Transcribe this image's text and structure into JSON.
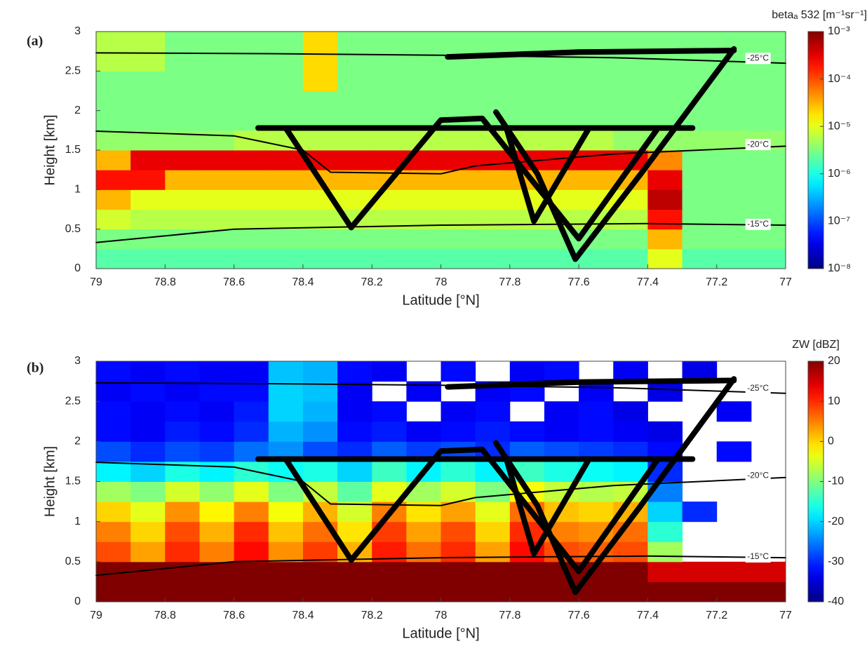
{
  "chart_data": [
    {
      "type": "heatmap",
      "panel_label": "(a)",
      "xlabel": "Latitude [°N]",
      "ylabel": "Height [km]",
      "colorbar_label": "betaₐ 532 [m⁻¹sr⁻¹]",
      "color_scale": "log",
      "colormap": "jet",
      "xlim": [
        79,
        77
      ],
      "ylim": [
        0,
        3
      ],
      "xticks": [
        79,
        78.8,
        78.6,
        78.4,
        78.2,
        78,
        77.8,
        77.6,
        77.4,
        77.2,
        77
      ],
      "yticks": [
        0,
        0.5,
        1,
        1.5,
        2,
        2.5,
        3
      ],
      "clim": [
        1e-08,
        0.001
      ],
      "cticks": [
        {
          "value": 0.001,
          "label": "10⁻³"
        },
        {
          "value": 0.0001,
          "label": "10⁻⁴"
        },
        {
          "value": 1e-05,
          "label": "10⁻⁵"
        },
        {
          "value": 1e-06,
          "label": "10⁻⁶"
        },
        {
          "value": 1e-07,
          "label": "10⁻⁷"
        },
        {
          "value": 1e-08,
          "label": "10⁻⁸"
        }
      ],
      "x_edges": [
        79,
        78.9,
        78.8,
        78.7,
        78.6,
        78.5,
        78.4,
        78.3,
        78.2,
        78.1,
        78,
        77.9,
        77.8,
        77.7,
        77.6,
        77.5,
        77.4,
        77.3,
        77.2,
        77.1,
        77
      ],
      "y_edges": [
        0,
        0.25,
        0.5,
        0.75,
        1,
        1.25,
        1.5,
        1.75,
        2,
        2.25,
        2.5,
        2.75,
        3
      ],
      "z": [
        [
          2e-06,
          2e-06,
          2e-06,
          2e-06,
          2e-06,
          2e-06,
          2e-06,
          2e-06,
          2e-06,
          2e-06,
          2e-06,
          2e-06,
          2e-06,
          2e-06,
          2e-06,
          2e-06,
          1e-05,
          2e-06,
          2e-06,
          2e-06
        ],
        [
          3e-06,
          3e-06,
          3e-06,
          3e-06,
          3e-06,
          3e-06,
          3e-06,
          3e-06,
          3e-06,
          3e-06,
          3e-06,
          3e-06,
          3e-06,
          3e-06,
          3e-06,
          3e-06,
          3e-05,
          3e-06,
          3e-06,
          3e-06
        ],
        [
          8e-06,
          6e-06,
          6e-06,
          6e-06,
          6e-06,
          6e-06,
          6e-06,
          6e-06,
          6e-06,
          6e-06,
          6e-06,
          6e-06,
          6e-06,
          6e-06,
          6e-06,
          6e-06,
          0.0002,
          3e-06,
          3e-06,
          3e-06
        ],
        [
          3e-05,
          1e-05,
          1e-05,
          1e-05,
          1e-05,
          1e-05,
          1e-05,
          1e-05,
          1e-05,
          1e-05,
          1e-05,
          1e-05,
          1e-05,
          1e-05,
          1e-05,
          1e-05,
          0.0005,
          3e-06,
          3e-06,
          3e-06
        ],
        [
          0.0002,
          0.0002,
          3e-05,
          3e-05,
          3e-05,
          3e-05,
          3e-05,
          3e-05,
          3e-05,
          3e-05,
          3e-05,
          3e-05,
          3e-05,
          3e-05,
          3e-05,
          3e-05,
          0.0003,
          3e-06,
          3e-06,
          3e-06
        ],
        [
          3e-05,
          0.0003,
          0.0003,
          0.0003,
          0.0003,
          0.0003,
          0.0003,
          0.0003,
          0.0003,
          0.0003,
          0.0003,
          0.0003,
          0.0003,
          0.0003,
          0.0003,
          0.0003,
          5e-05,
          3e-06,
          3e-06,
          3e-06
        ],
        [
          4e-06,
          4e-06,
          4e-06,
          4e-06,
          6e-06,
          6e-06,
          6e-06,
          6e-06,
          6e-06,
          6e-06,
          6e-06,
          6e-06,
          6e-06,
          6e-06,
          6e-06,
          4e-06,
          4e-06,
          4e-06,
          4e-06,
          4e-06
        ],
        [
          3e-06,
          3e-06,
          3e-06,
          3e-06,
          3e-06,
          3e-06,
          3e-06,
          3e-06,
          3e-06,
          3e-06,
          3e-06,
          3e-06,
          3e-06,
          3e-06,
          3e-06,
          3e-06,
          3e-06,
          3e-06,
          3e-06,
          3e-06
        ],
        [
          3e-06,
          3e-06,
          3e-06,
          3e-06,
          3e-06,
          3e-06,
          3e-06,
          3e-06,
          3e-06,
          3e-06,
          3e-06,
          3e-06,
          3e-06,
          3e-06,
          3e-06,
          3e-06,
          3e-06,
          3e-06,
          3e-06,
          3e-06
        ],
        [
          3e-06,
          3e-06,
          3e-06,
          3e-06,
          3e-06,
          3e-06,
          2e-05,
          3e-06,
          3e-06,
          3e-06,
          3e-06,
          3e-06,
          3e-06,
          3e-06,
          3e-06,
          3e-06,
          3e-06,
          3e-06,
          3e-06,
          3e-06
        ],
        [
          6e-06,
          6e-06,
          3e-06,
          3e-06,
          3e-06,
          3e-06,
          2e-05,
          3e-06,
          3e-06,
          3e-06,
          3e-06,
          3e-06,
          3e-06,
          3e-06,
          3e-06,
          3e-06,
          3e-06,
          3e-06,
          3e-06,
          3e-06
        ],
        [
          6e-06,
          6e-06,
          3e-06,
          3e-06,
          3e-06,
          3e-06,
          2e-05,
          3e-06,
          3e-06,
          3e-06,
          3e-06,
          3e-06,
          3e-06,
          3e-06,
          3e-06,
          3e-06,
          3e-06,
          3e-06,
          3e-06,
          3e-06
        ]
      ],
      "series": [
        {
          "color": "#000000",
          "width": 2,
          "x": [
            79,
            78.5,
            78,
            77.5,
            77
          ],
          "y": [
            2.73,
            2.72,
            2.7,
            2.67,
            2.6
          ]
        },
        {
          "color": "#000000",
          "width": 2,
          "x": [
            79,
            78.6,
            78.4,
            78.32,
            78,
            77.9,
            77.5,
            77
          ],
          "y": [
            1.74,
            1.68,
            1.5,
            1.22,
            1.2,
            1.3,
            1.45,
            1.55
          ]
        },
        {
          "color": "#000000",
          "width": 2,
          "x": [
            79,
            78.6,
            78,
            77.4,
            77
          ],
          "y": [
            0.33,
            0.5,
            0.55,
            0.57,
            0.55
          ]
        },
        {
          "color": "#000000",
          "width": 8,
          "x": [
            78.53,
            77.27,
            null,
            78.45,
            78.26,
            78,
            77.88,
            77.6,
            77.37,
            null,
            77.84,
            77.72,
            77.61,
            77.42,
            77.15,
            null,
            77.81,
            77.73,
            77.57,
            null,
            77.98,
            77.6,
            77.15
          ],
          "y": [
            1.78,
            1.78,
            null,
            1.78,
            0.52,
            1.88,
            1.9,
            0.38,
            1.78,
            null,
            1.98,
            1.2,
            0.12,
            1.2,
            2.78,
            null,
            1.78,
            0.6,
            1.78,
            null,
            2.68,
            2.74,
            2.76
          ]
        }
      ],
      "annotations": [
        {
          "text": "-25°C",
          "x": 77.08,
          "y": 2.66
        },
        {
          "text": "-20°C",
          "x": 77.08,
          "y": 1.57
        },
        {
          "text": "-15°C",
          "x": 77.08,
          "y": 0.56
        }
      ]
    },
    {
      "type": "heatmap",
      "panel_label": "(b)",
      "xlabel": "Latitude [°N]",
      "ylabel": "Height [km]",
      "colorbar_label": "ZW [dBZ]",
      "color_scale": "linear",
      "colormap": "jet",
      "xlim": [
        79,
        77
      ],
      "ylim": [
        0,
        3
      ],
      "xticks": [
        79,
        78.8,
        78.6,
        78.4,
        78.2,
        78,
        77.8,
        77.6,
        77.4,
        77.2,
        77
      ],
      "yticks": [
        0,
        0.5,
        1,
        1.5,
        2,
        2.5,
        3
      ],
      "clim": [
        -40,
        20
      ],
      "cticks": [
        20,
        10,
        0,
        -10,
        -20,
        -30,
        -40
      ],
      "x_edges": [
        79,
        78.9,
        78.8,
        78.7,
        78.6,
        78.5,
        78.4,
        78.3,
        78.2,
        78.1,
        78,
        77.9,
        77.8,
        77.7,
        77.6,
        77.5,
        77.4,
        77.3,
        77.2,
        77.1,
        77
      ],
      "y_edges": [
        0,
        0.25,
        0.5,
        0.75,
        1,
        1.25,
        1.5,
        1.75,
        2,
        2.25,
        2.5,
        2.75,
        3
      ],
      "z": [
        [
          25,
          25,
          25,
          25,
          25,
          25,
          25,
          25,
          25,
          25,
          25,
          25,
          25,
          25,
          25,
          25,
          25,
          25,
          25,
          25
        ],
        [
          22,
          22,
          22,
          22,
          22,
          22,
          22,
          22,
          22,
          22,
          22,
          22,
          22,
          22,
          22,
          22,
          15,
          15,
          15,
          15
        ],
        [
          8,
          3,
          10,
          5,
          12,
          4,
          9,
          2,
          11,
          6,
          10,
          3,
          12,
          8,
          7,
          8,
          -8,
          null,
          null,
          null
        ],
        [
          5,
          0,
          8,
          2,
          10,
          1,
          6,
          -1,
          9,
          3,
          8,
          0,
          10,
          5,
          4,
          6,
          -15,
          null,
          null,
          null
        ],
        [
          0,
          -4,
          4,
          -2,
          5,
          -3,
          2,
          -5,
          5,
          -1,
          3,
          -4,
          6,
          1,
          0,
          2,
          -20,
          -30,
          null,
          null
        ],
        [
          -8,
          -10,
          -5,
          -9,
          -4,
          -10,
          -6,
          -12,
          -4,
          -8,
          -5,
          -10,
          -3,
          -6,
          -7,
          -6,
          -25,
          null,
          null,
          null
        ],
        [
          -18,
          -20,
          -16,
          -18,
          -15,
          -17,
          -16,
          -20,
          -14,
          -18,
          -15,
          -18,
          -14,
          -16,
          -17,
          -18,
          -30,
          null,
          null,
          null
        ],
        [
          -28,
          -30,
          -28,
          -29,
          -26,
          -24,
          -28,
          -30,
          -27,
          -29,
          -28,
          -30,
          -27,
          -28,
          -29,
          -30,
          -32,
          null,
          -32,
          null
        ],
        [
          -32,
          -33,
          -31,
          -32,
          -30,
          -22,
          -24,
          -32,
          -31,
          -33,
          -32,
          -31,
          -32,
          -33,
          -32,
          -33,
          -34,
          null,
          null,
          null
        ],
        [
          -32,
          -33,
          -32,
          -33,
          -31,
          -20,
          -22,
          -33,
          -32,
          null,
          -33,
          -32,
          null,
          -33,
          -32,
          -34,
          null,
          null,
          -33,
          null
        ],
        [
          -33,
          -32,
          -33,
          -32,
          -32,
          -20,
          -21,
          -33,
          null,
          -33,
          null,
          -33,
          -32,
          null,
          -33,
          null,
          -34,
          null,
          null,
          null
        ],
        [
          -32,
          -33,
          -32,
          -33,
          -33,
          -21,
          -22,
          -32,
          -33,
          null,
          -32,
          null,
          -33,
          -32,
          null,
          -33,
          null,
          -34,
          null,
          null
        ]
      ],
      "series": [
        {
          "color": "#000000",
          "width": 2,
          "x": [
            79,
            78.5,
            78,
            77.5,
            77
          ],
          "y": [
            2.73,
            2.72,
            2.7,
            2.67,
            2.6
          ]
        },
        {
          "color": "#000000",
          "width": 2,
          "x": [
            79,
            78.6,
            78.4,
            78.32,
            78,
            77.9,
            77.5,
            77
          ],
          "y": [
            1.74,
            1.68,
            1.5,
            1.22,
            1.2,
            1.3,
            1.45,
            1.55
          ]
        },
        {
          "color": "#000000",
          "width": 2,
          "x": [
            79,
            78.6,
            78,
            77.4,
            77
          ],
          "y": [
            0.33,
            0.5,
            0.55,
            0.57,
            0.55
          ]
        },
        {
          "color": "#000000",
          "width": 8,
          "x": [
            78.53,
            77.27,
            null,
            78.45,
            78.26,
            78,
            77.88,
            77.6,
            77.37,
            null,
            77.84,
            77.72,
            77.61,
            77.42,
            77.15,
            null,
            77.81,
            77.73,
            77.57,
            null,
            77.98,
            77.6,
            77.15
          ],
          "y": [
            1.78,
            1.78,
            null,
            1.78,
            0.52,
            1.88,
            1.9,
            0.38,
            1.78,
            null,
            1.98,
            1.2,
            0.12,
            1.2,
            2.78,
            null,
            1.78,
            0.6,
            1.78,
            null,
            2.68,
            2.74,
            2.76
          ]
        }
      ],
      "annotations": [
        {
          "text": "-25°C",
          "x": 77.08,
          "y": 2.66
        },
        {
          "text": "-20°C",
          "x": 77.08,
          "y": 1.57
        },
        {
          "text": "-15°C",
          "x": 77.08,
          "y": 0.56
        }
      ]
    }
  ]
}
